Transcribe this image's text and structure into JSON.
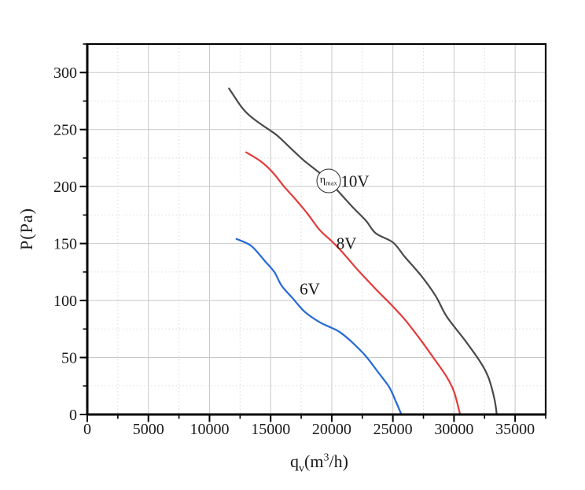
{
  "page": {
    "background": "#ffffff"
  },
  "chart_data": {
    "type": "line",
    "xlabel": "qv(m3/h)",
    "xlabel_parts": {
      "base": "q",
      "sub": "v",
      "mid": "(m",
      "sup": "3",
      "end": "/h)"
    },
    "ylabel": "P(Pa)",
    "xlim": [
      0,
      37500
    ],
    "ylim": [
      0,
      325
    ],
    "x_major_ticks": [
      0,
      5000,
      10000,
      15000,
      20000,
      25000,
      30000,
      35000
    ],
    "x_minor_tick_step": 2500,
    "y_major_ticks": [
      0,
      50,
      100,
      150,
      200,
      250,
      300
    ],
    "y_minor_tick_step": 25,
    "grid": {
      "major": "solid",
      "minor": "dotted",
      "legend": "none"
    },
    "colors": {
      "axis": "#000000",
      "grid_major": "#c8c8c8",
      "grid_minor": "#dbdbdb",
      "curve_10v": "#4a4a4a",
      "curve_8v": "#e53a3a",
      "curve_6v": "#2569d8"
    },
    "series": [
      {
        "name": "10V",
        "color": "#4a4a4a",
        "points": [
          [
            11600,
            286
          ],
          [
            12600,
            270
          ],
          [
            13300,
            262
          ],
          [
            14300,
            254
          ],
          [
            15500,
            245
          ],
          [
            16600,
            234
          ],
          [
            17700,
            223
          ],
          [
            19000,
            212
          ],
          [
            19700,
            205
          ],
          [
            20600,
            195
          ],
          [
            21700,
            182
          ],
          [
            22800,
            170
          ],
          [
            23600,
            159
          ],
          [
            25000,
            151
          ],
          [
            26000,
            138
          ],
          [
            27300,
            122
          ],
          [
            28500,
            104
          ],
          [
            29400,
            86
          ],
          [
            30900,
            65
          ],
          [
            32100,
            47
          ],
          [
            32800,
            33
          ],
          [
            33300,
            14
          ],
          [
            33500,
            0
          ]
        ]
      },
      {
        "name": "8V",
        "color": "#e53a3a",
        "points": [
          [
            13000,
            230
          ],
          [
            14200,
            222
          ],
          [
            15200,
            212
          ],
          [
            16100,
            200
          ],
          [
            17100,
            188
          ],
          [
            18100,
            175
          ],
          [
            19000,
            162
          ],
          [
            20000,
            152
          ],
          [
            20900,
            142
          ],
          [
            22200,
            126
          ],
          [
            23600,
            110
          ],
          [
            24800,
            97
          ],
          [
            26000,
            83
          ],
          [
            27300,
            65
          ],
          [
            28500,
            47
          ],
          [
            29400,
            33
          ],
          [
            30000,
            20
          ],
          [
            30500,
            0
          ]
        ]
      },
      {
        "name": "6V",
        "color": "#2569d8",
        "points": [
          [
            12200,
            154
          ],
          [
            13400,
            148
          ],
          [
            14500,
            135
          ],
          [
            15300,
            125
          ],
          [
            15900,
            113
          ],
          [
            16800,
            102
          ],
          [
            17800,
            90
          ],
          [
            19000,
            81
          ],
          [
            20000,
            76
          ],
          [
            20700,
            72
          ],
          [
            21700,
            63
          ],
          [
            22800,
            51
          ],
          [
            23800,
            37
          ],
          [
            24700,
            24
          ],
          [
            25300,
            10
          ],
          [
            25700,
            0
          ]
        ]
      }
    ],
    "annotations": {
      "eta_max_marker": {
        "base": "η",
        "sub": "max",
        "x": 19730,
        "y": 205,
        "radius_px": 15.5
      },
      "curve_labels": [
        {
          "text": "10V",
          "x": 21900,
          "y": 204
        },
        {
          "text": "8V",
          "x": 21200,
          "y": 150
        },
        {
          "text": "6V",
          "x": 18200,
          "y": 110
        }
      ]
    }
  }
}
